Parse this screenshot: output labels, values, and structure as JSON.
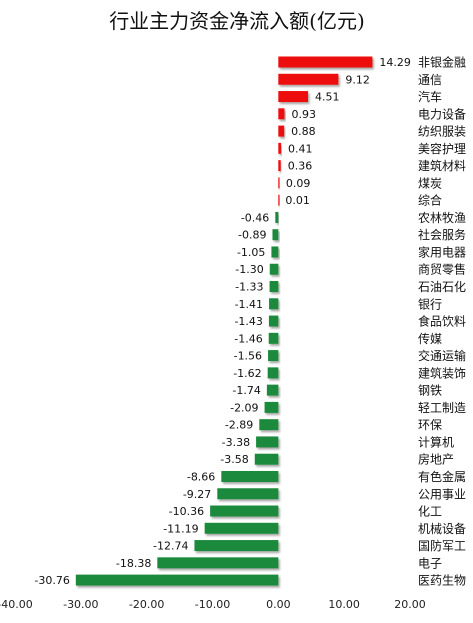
{
  "chart_data": {
    "type": "bar",
    "orientation": "horizontal",
    "title": "行业主力资金净流入额(亿元)",
    "xlim": [
      -40,
      20
    ],
    "xticks": [
      "-40.00",
      "-30.00",
      "-20.00",
      "-10.00",
      "0.00",
      "10.00",
      "20.00"
    ],
    "xtick_values": [
      -40,
      -30,
      -20,
      -10,
      0,
      10,
      20
    ],
    "grid": false,
    "colors": {
      "positive": "#ee1111",
      "negative": "#1f8a3c"
    },
    "categories": [
      "非银金融",
      "通信",
      "汽车",
      "电力设备",
      "纺织服装",
      "美容护理",
      "建筑材料",
      "煤炭",
      "综合",
      "农林牧渔",
      "社会服务",
      "家用电器",
      "商贸零售",
      "石油石化",
      "银行",
      "食品饮料",
      "传媒",
      "交通运输",
      "建筑装饰",
      "钢铁",
      "轻工制造",
      "环保",
      "计算机",
      "房地产",
      "有色金属",
      "公用事业",
      "化工",
      "机械设备",
      "国防军工",
      "电子",
      "医药生物"
    ],
    "values": [
      14.29,
      9.12,
      4.51,
      0.93,
      0.88,
      0.41,
      0.36,
      0.09,
      0.01,
      -0.46,
      -0.89,
      -1.05,
      -1.3,
      -1.33,
      -1.41,
      -1.43,
      -1.46,
      -1.56,
      -1.62,
      -1.74,
      -2.09,
      -2.89,
      -3.38,
      -3.58,
      -8.66,
      -9.27,
      -10.36,
      -11.19,
      -12.74,
      -18.38,
      -30.76
    ],
    "value_labels": [
      "14.29",
      "9.12",
      "4.51",
      "0.93",
      "0.88",
      "0.41",
      "0.36",
      "0.09",
      "0.01",
      "-0.46",
      "-0.89",
      "-1.05",
      "-1.30",
      "-1.33",
      "-1.41",
      "-1.43",
      "-1.46",
      "-1.56",
      "-1.62",
      "-1.74",
      "-2.09",
      "-2.89",
      "-3.38",
      "-3.58",
      "-8.66",
      "-9.27",
      "-10.36",
      "-11.19",
      "-12.74",
      "-18.38",
      "-30.76"
    ]
  }
}
